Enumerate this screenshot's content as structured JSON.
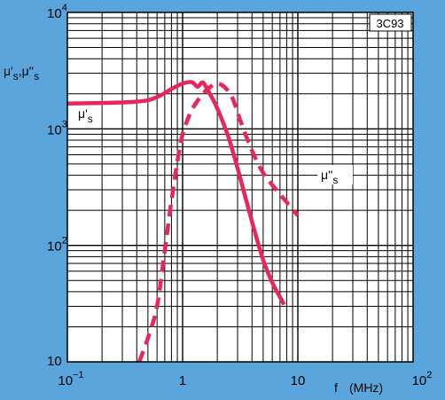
{
  "chart_data": {
    "type": "line",
    "label": "3C93",
    "ylabel": "μ's , μ''s",
    "xlabel": "f",
    "xunit": "(MHz)",
    "xscale": "log",
    "yscale": "log",
    "xlim": [
      0.1,
      100
    ],
    "ylim": [
      10,
      10000
    ],
    "grid": true,
    "x_ticks": [
      {
        "value": 0.1,
        "base": "10",
        "exp": "−1"
      },
      {
        "value": 1,
        "base": "1",
        "exp": ""
      },
      {
        "value": 10,
        "base": "10",
        "exp": ""
      },
      {
        "value": 100,
        "base": "10",
        "exp": "2"
      }
    ],
    "y_ticks": [
      {
        "value": 10,
        "base": "10",
        "exp": ""
      },
      {
        "value": 100,
        "base": "10",
        "exp": "2"
      },
      {
        "value": 1000,
        "base": "10",
        "exp": "3"
      },
      {
        "value": 10000,
        "base": "10",
        "exp": "4"
      }
    ],
    "series": [
      {
        "name": "μ's",
        "style": "solid",
        "color": "#e8265b",
        "x": [
          0.1,
          0.2,
          0.35,
          0.5,
          0.65,
          0.8,
          1.0,
          1.2,
          1.35,
          1.5,
          1.7,
          2.0,
          2.5,
          3.0,
          4.0,
          5.0,
          6.0,
          7.0,
          7.6
        ],
        "y": [
          1650,
          1670,
          1700,
          1760,
          1950,
          2200,
          2450,
          2520,
          2300,
          2500,
          2050,
          1500,
          850,
          460,
          160,
          75,
          48,
          36,
          31
        ]
      },
      {
        "name": "μ''s",
        "style": "dashed",
        "color": "#e8265b",
        "x": [
          0.42,
          0.5,
          0.6,
          0.7,
          0.8,
          0.9,
          1.0,
          1.2,
          1.5,
          1.8,
          2.0,
          2.3,
          2.7,
          3.2,
          4.0,
          5.0,
          6.5,
          8.0,
          10.0
        ],
        "y": [
          10,
          16,
          30,
          90,
          240,
          520,
          900,
          1450,
          2000,
          2350,
          2450,
          2300,
          1850,
          1150,
          650,
          420,
          300,
          235,
          180
        ]
      }
    ]
  }
}
